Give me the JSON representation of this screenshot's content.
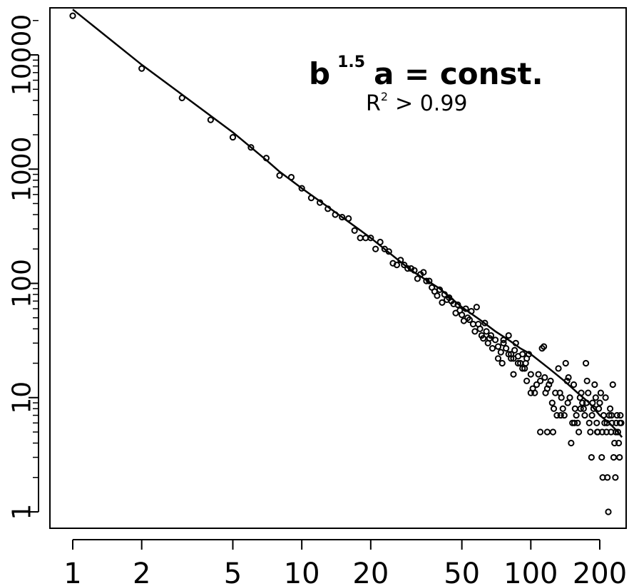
{
  "chart_data": {
    "type": "scatter",
    "title": "",
    "xlabel": "",
    "ylabel": "",
    "x_scale": "log",
    "y_scale": "log",
    "xlim": [
      0.9,
      250
    ],
    "ylim": [
      0.75,
      30000
    ],
    "grid": false,
    "x_ticks": [
      1,
      2,
      5,
      10,
      20,
      50,
      100,
      200
    ],
    "x_tick_labels": [
      "1",
      "2",
      "5",
      "10",
      "20",
      "50",
      "100",
      "200"
    ],
    "y_ticks": [
      1,
      10,
      100,
      1000,
      10000
    ],
    "y_tick_labels": [
      "1",
      "10",
      "100",
      "1000",
      "10000"
    ],
    "y_minor_ticks": [
      2,
      3,
      4,
      5,
      6,
      7,
      8,
      9,
      20,
      30,
      40,
      50,
      60,
      70,
      80,
      90,
      200,
      300,
      400,
      500,
      600,
      700,
      800,
      900,
      2000,
      3000,
      4000,
      5000,
      6000,
      7000,
      8000,
      9000,
      20000
    ],
    "annotation": {
      "equation_base": "b",
      "equation_exponent": "1.5",
      "equation_rest": "a = const.",
      "r2_base": "R",
      "r2_exponent": "2",
      "r2_rest": "> 0.99"
    },
    "series": [
      {
        "type": "scatter",
        "marker": "open-circle",
        "color": "#000000",
        "points": [
          [
            1,
            22000
          ],
          [
            2,
            7600
          ],
          [
            3,
            4200
          ],
          [
            4,
            2700
          ],
          [
            5,
            1900
          ],
          [
            6,
            1550
          ],
          [
            7,
            1250
          ],
          [
            8,
            880
          ],
          [
            9,
            850
          ],
          [
            10,
            680
          ],
          [
            11,
            560
          ],
          [
            12,
            510
          ],
          [
            13,
            450
          ],
          [
            14,
            400
          ],
          [
            15,
            380
          ],
          [
            16,
            370
          ],
          [
            17,
            290
          ],
          [
            18,
            250
          ],
          [
            19,
            250
          ],
          [
            20,
            250
          ],
          [
            21,
            200
          ],
          [
            22,
            230
          ],
          [
            23,
            200
          ],
          [
            24,
            190
          ],
          [
            25,
            150
          ],
          [
            26,
            145
          ],
          [
            27,
            160
          ],
          [
            28,
            145
          ],
          [
            29,
            135
          ],
          [
            30,
            135
          ],
          [
            31,
            130
          ],
          [
            32,
            110
          ],
          [
            33,
            120
          ],
          [
            34,
            125
          ],
          [
            35,
            105
          ],
          [
            36,
            105
          ],
          [
            37,
            92
          ],
          [
            38,
            85
          ],
          [
            39,
            78
          ],
          [
            40,
            88
          ],
          [
            41,
            68
          ],
          [
            42,
            80
          ],
          [
            43,
            72
          ],
          [
            44,
            75
          ],
          [
            45,
            70
          ],
          [
            46,
            66
          ],
          [
            47,
            55
          ],
          [
            48,
            65
          ],
          [
            49,
            58
          ],
          [
            50,
            53
          ],
          [
            51,
            47
          ],
          [
            52,
            60
          ],
          [
            53,
            50
          ],
          [
            54,
            48
          ],
          [
            55,
            57
          ],
          [
            56,
            44
          ],
          [
            57,
            38
          ],
          [
            58,
            62
          ],
          [
            59,
            44
          ],
          [
            60,
            40
          ],
          [
            61,
            35
          ],
          [
            62,
            33
          ],
          [
            63,
            45
          ],
          [
            64,
            38
          ],
          [
            65,
            30
          ],
          [
            66,
            33
          ],
          [
            67,
            35
          ],
          [
            68,
            27
          ],
          [
            70,
            32
          ],
          [
            72,
            28
          ],
          [
            74,
            25
          ],
          [
            75,
            20
          ],
          [
            76,
            32
          ],
          [
            78,
            27
          ],
          [
            80,
            35
          ],
          [
            82,
            24
          ],
          [
            84,
            22
          ],
          [
            85,
            26
          ],
          [
            86,
            30
          ],
          [
            88,
            23
          ],
          [
            90,
            20
          ],
          [
            92,
            24
          ],
          [
            94,
            18
          ],
          [
            95,
            20
          ],
          [
            96,
            22
          ],
          [
            98,
            24
          ],
          [
            100,
            16
          ],
          [
            102,
            12
          ],
          [
            104,
            11
          ],
          [
            106,
            13
          ],
          [
            108,
            16
          ],
          [
            110,
            14
          ],
          [
            112,
            27
          ],
          [
            114,
            28
          ],
          [
            115,
            15
          ],
          [
            116,
            11
          ],
          [
            118,
            12
          ],
          [
            120,
            13
          ],
          [
            122,
            14
          ],
          [
            124,
            9
          ],
          [
            126,
            8
          ],
          [
            128,
            11
          ],
          [
            130,
            7
          ],
          [
            132,
            18
          ],
          [
            134,
            11
          ],
          [
            136,
            10
          ],
          [
            138,
            8
          ],
          [
            140,
            7
          ],
          [
            142,
            20
          ],
          [
            144,
            14
          ],
          [
            146,
            15
          ],
          [
            148,
            10
          ],
          [
            150,
            4
          ],
          [
            152,
            6
          ],
          [
            154,
            13
          ],
          [
            156,
            8
          ],
          [
            158,
            7
          ],
          [
            160,
            6
          ],
          [
            162,
            5
          ],
          [
            164,
            10
          ],
          [
            166,
            11
          ],
          [
            168,
            9
          ],
          [
            170,
            8
          ],
          [
            172,
            7
          ],
          [
            174,
            20
          ],
          [
            176,
            14
          ],
          [
            178,
            11
          ],
          [
            180,
            6
          ],
          [
            182,
            5
          ],
          [
            184,
            3
          ],
          [
            186,
            9
          ],
          [
            188,
            8
          ],
          [
            190,
            13
          ],
          [
            192,
            10
          ],
          [
            194,
            6
          ],
          [
            196,
            5
          ],
          [
            198,
            8
          ],
          [
            200,
            9
          ],
          [
            202,
            11
          ],
          [
            204,
            3
          ],
          [
            206,
            2
          ],
          [
            208,
            7
          ],
          [
            210,
            6
          ],
          [
            212,
            10
          ],
          [
            214,
            5
          ],
          [
            216,
            2
          ],
          [
            218,
            1
          ],
          [
            220,
            7
          ],
          [
            222,
            8
          ],
          [
            224,
            5
          ],
          [
            226,
            6
          ],
          [
            228,
            13
          ],
          [
            230,
            3
          ],
          [
            232,
            4
          ],
          [
            234,
            2
          ],
          [
            236,
            6
          ],
          [
            238,
            7
          ],
          [
            240,
            5
          ],
          [
            242,
            4
          ],
          [
            244,
            3
          ],
          [
            246,
            7
          ],
          [
            248,
            6
          ],
          [
            118,
            5
          ],
          [
            125,
            5
          ],
          [
            135,
            7
          ],
          [
            145,
            9
          ],
          [
            155,
            6
          ],
          [
            165,
            8
          ],
          [
            175,
            9
          ],
          [
            185,
            7
          ],
          [
            195,
            5
          ],
          [
            205,
            5
          ],
          [
            215,
            6
          ],
          [
            225,
            7
          ],
          [
            235,
            5
          ],
          [
            245,
            6
          ],
          [
            110,
            5
          ],
          [
            100,
            11
          ],
          [
            96,
            14
          ],
          [
            92,
            18
          ],
          [
            88,
            20
          ],
          [
            84,
            16
          ],
          [
            82,
            22
          ],
          [
            80,
            24
          ],
          [
            76,
            30
          ],
          [
            72,
            22
          ]
        ]
      },
      {
        "type": "line",
        "color": "#000000",
        "points": [
          [
            1,
            25000
          ],
          [
            2,
            8200
          ],
          [
            3,
            4500
          ],
          [
            5,
            2100
          ],
          [
            7,
            1200
          ],
          [
            8,
            950
          ],
          [
            10,
            680
          ],
          [
            14,
            420
          ],
          [
            20,
            250
          ],
          [
            30,
            130
          ],
          [
            40,
            90
          ],
          [
            50,
            62
          ],
          [
            60,
            48
          ],
          [
            70,
            38
          ],
          [
            80,
            32
          ],
          [
            90,
            27
          ],
          [
            100,
            24
          ],
          [
            120,
            18
          ],
          [
            140,
            14
          ],
          [
            160,
            11
          ],
          [
            180,
            9
          ],
          [
            200,
            7
          ],
          [
            220,
            6
          ],
          [
            240,
            5
          ],
          [
            250,
            4.5
          ]
        ]
      }
    ]
  }
}
